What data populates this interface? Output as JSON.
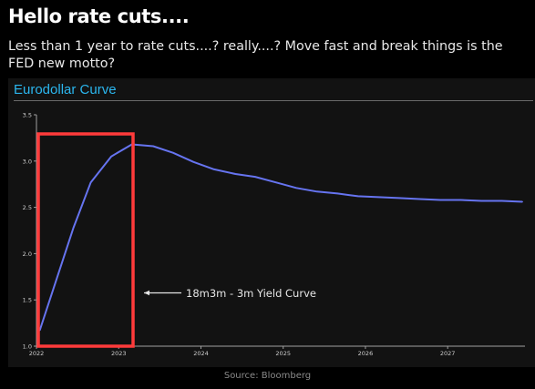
{
  "header": {
    "title": "Hello rate cuts....",
    "subtitle": "Less than 1 year to rate cuts....? really....? Move fast and break things is the FED new motto?"
  },
  "footer": {
    "source": "Source: Bloomberg"
  },
  "chart_data": {
    "type": "line",
    "title": "Eurodollar Curve",
    "xlabel": "",
    "ylabel": "",
    "xlim": [
      2022.0,
      2027.94
    ],
    "ylim": [
      1.0,
      3.5
    ],
    "x_ticks": [
      "2022",
      "2023",
      "2024",
      "2025",
      "2026",
      "2027"
    ],
    "y_ticks": [
      "1.0",
      "1.5",
      "2.0",
      "2.5",
      "3.0",
      "3.5"
    ],
    "grid": false,
    "legend": "none",
    "series": [
      {
        "name": "",
        "color": "#6674f0",
        "x": [
          2022.04,
          2022.25,
          2022.45,
          2022.66,
          2022.91,
          2023.16,
          2023.42,
          2023.66,
          2023.91,
          2024.16,
          2024.42,
          2024.66,
          2024.91,
          2025.16,
          2025.41,
          2025.66,
          2025.91,
          2026.16,
          2026.41,
          2026.66,
          2026.91,
          2027.16,
          2027.41,
          2027.66,
          2027.91
        ],
        "y": [
          1.17,
          1.74,
          2.28,
          2.77,
          3.05,
          3.18,
          3.16,
          3.09,
          2.99,
          2.91,
          2.86,
          2.83,
          2.77,
          2.71,
          2.67,
          2.65,
          2.62,
          2.61,
          2.6,
          2.59,
          2.58,
          2.58,
          2.57,
          2.57,
          2.56
        ]
      }
    ],
    "annotations": [
      {
        "text": "18m3m - 3m Yield Curve",
        "arrow": "left",
        "highlight": "red box around 2022–2023"
      }
    ],
    "highlight_color": "#ff3b3b",
    "axis_color": "#a0a0a0"
  }
}
